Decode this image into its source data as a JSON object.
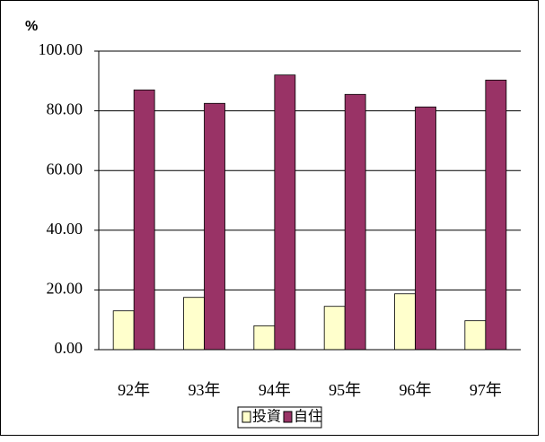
{
  "chart_data": {
    "type": "bar",
    "unit": "%",
    "categories": [
      "92年",
      "93年",
      "94年",
      "95年",
      "96年",
      "97年"
    ],
    "series": [
      {
        "name": "投資",
        "color": "#ffffcc",
        "values": [
          13,
          17.5,
          8,
          14.5,
          18.7,
          9.7
        ]
      },
      {
        "name": "自住",
        "color": "#993366",
        "values": [
          87,
          82.5,
          92,
          85.5,
          81.3,
          90.3
        ]
      }
    ],
    "ylim": [
      0,
      100
    ],
    "yticks": [
      {
        "value": 0,
        "label": "0.00"
      },
      {
        "value": 20,
        "label": "20.00"
      },
      {
        "value": 40,
        "label": "40.00"
      },
      {
        "value": 60,
        "label": "60.00"
      },
      {
        "value": 80,
        "label": "80.00"
      },
      {
        "value": 100,
        "label": "100.00"
      }
    ],
    "grid": true,
    "legend": "bottom"
  }
}
